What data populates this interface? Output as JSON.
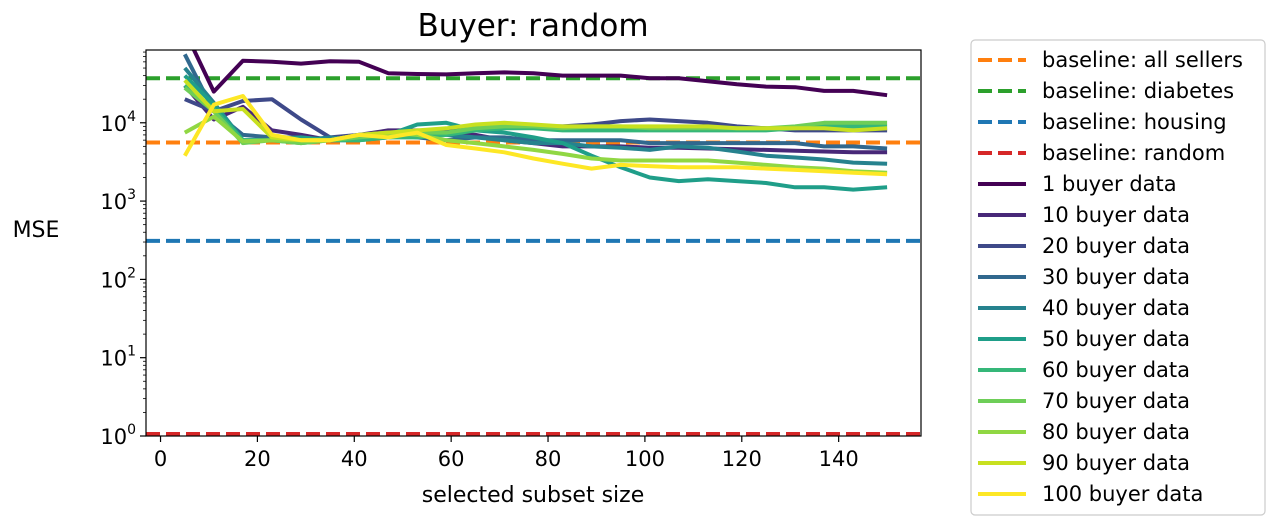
{
  "chart_data": {
    "type": "line",
    "title": "Buyer: random",
    "xlabel": "selected subset size",
    "ylabel": "MSE",
    "yscale": "log",
    "xlim": [
      -3,
      157
    ],
    "ylim": [
      1,
      85000
    ],
    "xticks": [
      0,
      20,
      40,
      60,
      80,
      100,
      120,
      140
    ],
    "xtick_labels": [
      "0",
      "20",
      "40",
      "60",
      "80",
      "100",
      "120",
      "140"
    ],
    "yticks": [
      1,
      10,
      100,
      1000,
      10000
    ],
    "ytick_labels": [
      {
        "base": "10",
        "exp": "0"
      },
      {
        "base": "10",
        "exp": "1"
      },
      {
        "base": "10",
        "exp": "2"
      },
      {
        "base": "10",
        "exp": "3"
      },
      {
        "base": "10",
        "exp": "4"
      }
    ],
    "grid": false,
    "legend_position": "outside-right",
    "x": [
      5,
      11,
      17,
      23,
      29,
      35,
      41,
      47,
      53,
      59,
      65,
      71,
      77,
      83,
      89,
      95,
      101,
      107,
      113,
      119,
      125,
      131,
      137,
      143,
      150
    ],
    "baselines": [
      {
        "name": "baseline: all sellers",
        "value": 5600,
        "color": "#ff7f0e"
      },
      {
        "name": "baseline: diabetes",
        "value": 37000,
        "color": "#2ca02c"
      },
      {
        "name": "baseline: housing",
        "value": 310,
        "color": "#1f77b4"
      },
      {
        "name": "baseline: random",
        "value": 1.06,
        "color": "#d62728"
      }
    ],
    "series": [
      {
        "name": "1 buyer data",
        "color": "#440154",
        "values": [
          150000,
          25000,
          62000,
          60000,
          57000,
          61000,
          60000,
          43000,
          42000,
          41500,
          43000,
          44000,
          43000,
          40000,
          40000,
          40000,
          37000,
          37000,
          34000,
          31000,
          29000,
          28500,
          25500,
          25500,
          22500
        ]
      },
      {
        "name": "10 buyer data",
        "color": "#482878",
        "values": [
          30000,
          11000,
          16000,
          8000,
          7000,
          6000,
          7000,
          8000,
          8000,
          7500,
          7000,
          6000,
          5500,
          5000,
          5000,
          5000,
          4800,
          4800,
          4700,
          4600,
          4500,
          4400,
          4300,
          4200,
          4200
        ]
      },
      {
        "name": "20 buyer data",
        "color": "#3e4989",
        "values": [
          20000,
          14000,
          19000,
          20000,
          11000,
          6500,
          7000,
          7500,
          7500,
          8000,
          8500,
          9000,
          9000,
          9000,
          9500,
          10500,
          11000,
          10500,
          10000,
          9000,
          8500,
          8000,
          8000,
          8000,
          8000
        ]
      },
      {
        "name": "30 buyer data",
        "color": "#31688e",
        "values": [
          75000,
          14000,
          7000,
          6500,
          6500,
          6000,
          6000,
          7000,
          6500,
          6000,
          6500,
          6500,
          6000,
          6000,
          6000,
          6000,
          5500,
          5500,
          5500,
          5500,
          5500,
          5500,
          5000,
          5000,
          4700
        ]
      },
      {
        "name": "40 buyer data",
        "color": "#26828e",
        "values": [
          50000,
          18000,
          6000,
          6000,
          6000,
          6500,
          6000,
          6500,
          7000,
          7000,
          6500,
          6000,
          5500,
          5500,
          5000,
          4800,
          4500,
          5000,
          4800,
          4300,
          3800,
          3600,
          3400,
          3100,
          3000
        ]
      },
      {
        "name": "50 buyer data",
        "color": "#1f9e89",
        "values": [
          40000,
          17000,
          6000,
          6000,
          6500,
          6000,
          7000,
          7000,
          9500,
          10000,
          8000,
          7500,
          6500,
          5500,
          3800,
          2700,
          2000,
          1800,
          1900,
          1800,
          1700,
          1500,
          1500,
          1400,
          1500
        ]
      },
      {
        "name": "60 buyer data",
        "color": "#35b779",
        "values": [
          30000,
          15000,
          6000,
          6000,
          5500,
          6000,
          6000,
          6500,
          6500,
          7000,
          8000,
          8500,
          8500,
          8000,
          8000,
          8000,
          8000,
          8000,
          8000,
          8000,
          8000,
          8500,
          9000,
          9000,
          9000
        ]
      },
      {
        "name": "70 buyer data",
        "color": "#6ece58",
        "values": [
          28000,
          14000,
          5500,
          6000,
          5500,
          6000,
          6500,
          7000,
          7500,
          7500,
          8500,
          9000,
          9000,
          8500,
          9000,
          9000,
          8500,
          8500,
          8500,
          8500,
          8500,
          9000,
          10000,
          10000,
          10000
        ]
      },
      {
        "name": "80 buyer data",
        "color": "#90d743",
        "values": [
          7500,
          12000,
          5800,
          6000,
          6000,
          6000,
          7000,
          7500,
          7000,
          6000,
          5500,
          5000,
          4500,
          4000,
          3500,
          3300,
          3300,
          3300,
          3300,
          3100,
          2900,
          2700,
          2600,
          2400,
          2300
        ]
      },
      {
        "name": "90 buyer data",
        "color": "#c8e020",
        "values": [
          35000,
          14000,
          15000,
          6500,
          6000,
          6000,
          7000,
          7500,
          8000,
          8500,
          9500,
          10000,
          9500,
          9000,
          9000,
          9000,
          9000,
          9000,
          9000,
          8500,
          8500,
          8500,
          8500,
          8000,
          8500
        ]
      },
      {
        "name": "100 buyer data",
        "color": "#fde725",
        "values": [
          3800,
          17000,
          22000,
          7000,
          6000,
          6000,
          7000,
          6500,
          7500,
          5200,
          4700,
          4200,
          3500,
          3000,
          2600,
          2900,
          2800,
          2700,
          2700,
          2700,
          2600,
          2500,
          2400,
          2300,
          2200
        ]
      }
    ]
  }
}
